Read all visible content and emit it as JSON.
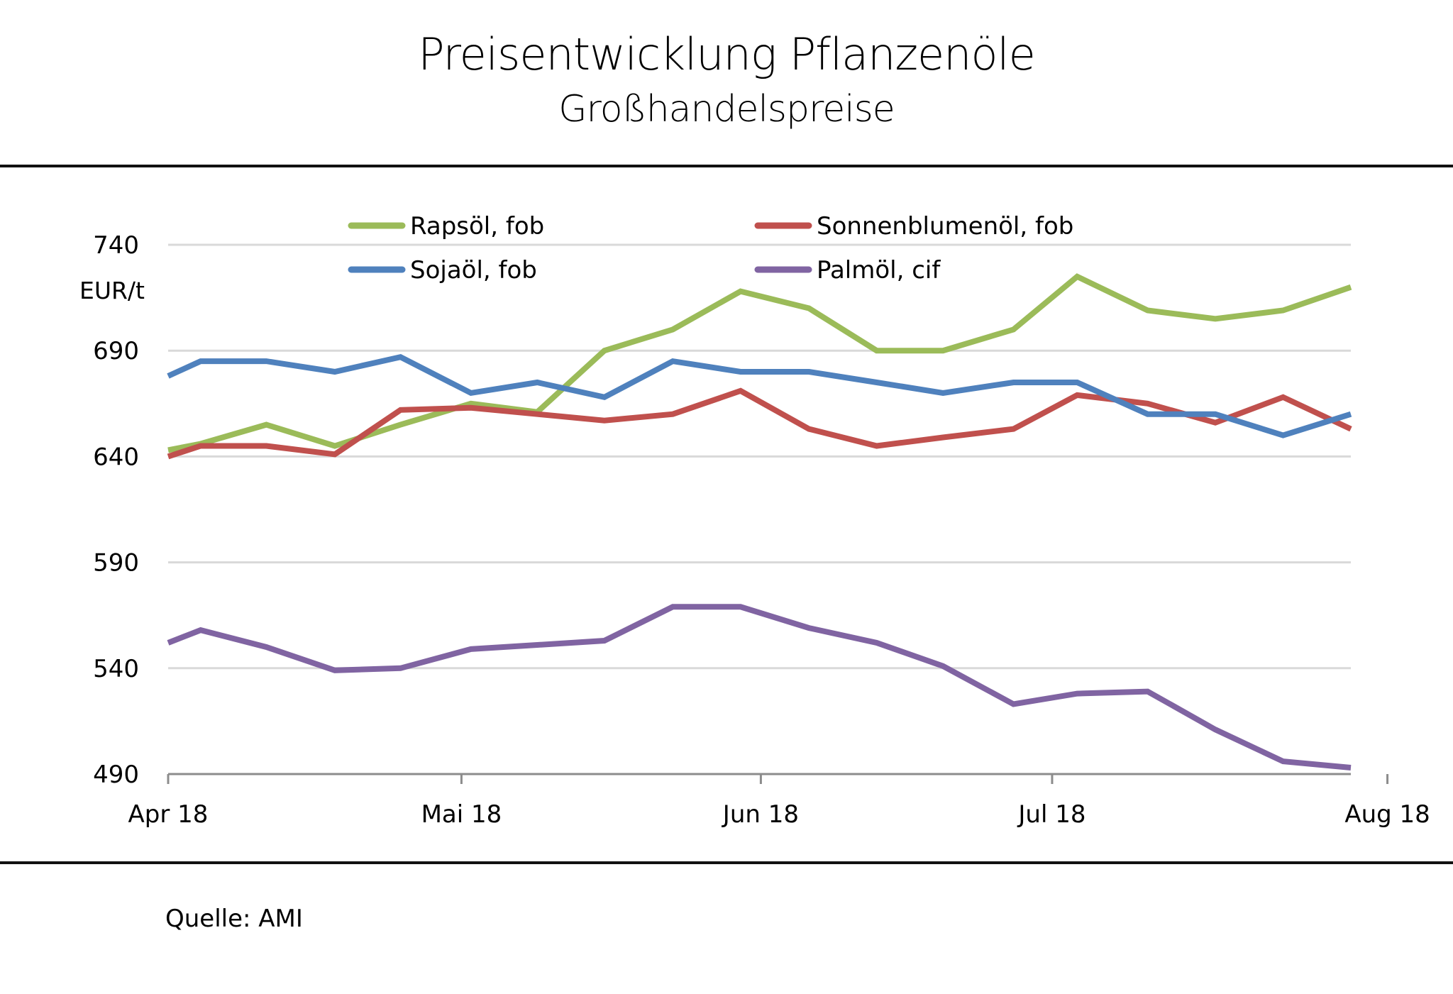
{
  "chart_data": {
    "type": "line",
    "title": "Preisentwicklung Pflanzenöle",
    "subtitle": "Großhandelspreise",
    "ylabel": "EUR/t",
    "xlabel": "",
    "ylim": [
      490,
      740
    ],
    "yticks": [
      490,
      540,
      590,
      640,
      690,
      740
    ],
    "ytick_labels": [
      "490",
      "540",
      "590",
      "640",
      "690",
      "740"
    ],
    "xticks": [
      {
        "index": 0,
        "label": "Apr 18"
      },
      {
        "index": 4.33,
        "label": "Mai 18"
      },
      {
        "index": 8.75,
        "label": "Jun 18"
      },
      {
        "index": 13.05,
        "label": "Jul 18"
      },
      {
        "index": 18,
        "label": "Aug 18"
      }
    ],
    "x": [
      0,
      0.48,
      1.45,
      2.46,
      3.43,
      4.47,
      5.45,
      6.44,
      7.45,
      8.45,
      9.46,
      10.46,
      11.44,
      12.48,
      13.42,
      14.46,
      15.46,
      16.46,
      17.46
    ],
    "x_note": "weekly observations between Apr 18 and Aug 18",
    "grid": true,
    "legend_position": "top",
    "series": [
      {
        "name": "Rapsöl, fob",
        "color": "#9BBB59",
        "values": [
          643,
          646,
          655,
          645,
          655,
          665,
          661,
          690,
          700,
          718,
          710,
          690,
          690,
          700,
          725,
          709,
          705,
          709,
          720
        ]
      },
      {
        "name": "Sonnenblumenöl, fob",
        "color": "#C0504D",
        "values": [
          640,
          645,
          645,
          641,
          662,
          663,
          660,
          657,
          660,
          671,
          653,
          645,
          649,
          653,
          669,
          665,
          656,
          668,
          653
        ]
      },
      {
        "name": "Sojaöl, fob",
        "color": "#4F81BD",
        "values": [
          678,
          685,
          685,
          680,
          687,
          670,
          675,
          668,
          685,
          680,
          680,
          675,
          670,
          675,
          675,
          660,
          660,
          650,
          660
        ]
      },
      {
        "name": "Palmöl, cif",
        "color": "#8064A2",
        "values": [
          552,
          558,
          550,
          539,
          540,
          549,
          551,
          553,
          569,
          569,
          559,
          552,
          541,
          523,
          528,
          529,
          511,
          496,
          493
        ]
      }
    ]
  },
  "legend": [
    {
      "label": "Rapsöl, fob",
      "color": "#9BBB59"
    },
    {
      "label": "Sonnenblumenöl, fob",
      "color": "#C0504D"
    },
    {
      "label": "Sojaöl, fob",
      "color": "#4F81BD"
    },
    {
      "label": "Palmöl, cif",
      "color": "#8064A2"
    }
  ],
  "source": "Quelle: AMI"
}
